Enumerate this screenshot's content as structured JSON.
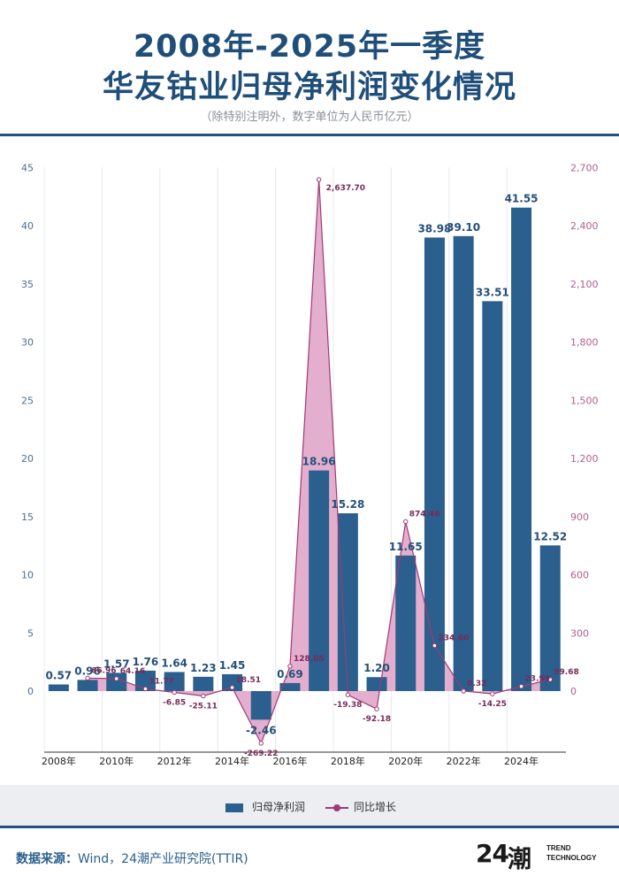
{
  "header": {
    "title_line1": "2008年-2025年一季度",
    "title_line2": "华友钴业归母净利润变化情况",
    "subtitle": "（除特别注明外，数字单位为人民币亿元）"
  },
  "legend": {
    "bar_label": "归母净利润",
    "line_label": "同比增长"
  },
  "source": {
    "label": "数据来源：",
    "text": "Wind，24潮产业研究院(TTIR)"
  },
  "logo": {
    "number": "24",
    "chinese": "潮",
    "english_line1": "TREND",
    "english_line2": "TECHNOLOGY"
  },
  "colors": {
    "bar": "#2a5f8e",
    "line": "#a03a74",
    "area": "#dfa0c6",
    "title": "#1f4e79"
  },
  "chart_data": {
    "type": "bar",
    "title": "",
    "categories": [
      "2008",
      "2009",
      "2010",
      "2011",
      "2012",
      "2013",
      "2014",
      "2015",
      "2016",
      "2017",
      "2018",
      "2019",
      "2020",
      "2021",
      "2022",
      "2023",
      "2024",
      "2025Q1"
    ],
    "x_tick_labels": [
      "2008年",
      "2010年",
      "2012年",
      "2014年",
      "2016年",
      "2018年",
      "2020年",
      "2022年",
      "2024年"
    ],
    "series": [
      {
        "name": "归母净利润",
        "type": "bar",
        "axis": "left",
        "values": [
          0.57,
          0.96,
          1.57,
          1.76,
          1.64,
          1.23,
          1.45,
          -2.46,
          0.69,
          18.96,
          15.28,
          1.2,
          11.65,
          38.98,
          39.1,
          33.51,
          41.55,
          12.52
        ],
        "labels": [
          "0.57",
          "0.96",
          "1.57",
          "1.76",
          "1.64",
          "1.23",
          "1.45",
          "-2.46",
          "0.69",
          "18.96",
          "15.28",
          "1.20",
          "11.65",
          "38.98",
          "39.10",
          "33.51",
          "41.55",
          "12.52"
        ]
      },
      {
        "name": "同比增长",
        "type": "area-line",
        "axis": "right",
        "values": [
          null,
          66.96,
          64.16,
          11.77,
          -6.85,
          -25.11,
          18.51,
          -269.22,
          128.05,
          2637.7,
          -19.38,
          -92.18,
          874.46,
          234.6,
          0.32,
          -14.25,
          23.99,
          59.68
        ],
        "labels": [
          "",
          "66.96",
          "64.16",
          "11.77",
          "-6.85",
          "-25.11",
          "18.51",
          "-269.22",
          "128.05",
          "2,637.70",
          "-19.38",
          "-92.18",
          "874.46",
          "234.60",
          "0.32",
          "-14.25",
          "23.99",
          "59.68"
        ]
      }
    ],
    "y_left": {
      "lim": [
        -5,
        45
      ],
      "ticks": [
        "45",
        "40",
        "35",
        "30",
        "25",
        "20",
        "15",
        "10",
        "5",
        "0"
      ]
    },
    "y_right": {
      "lim": [
        -450,
        2700
      ],
      "ticks": [
        "2,700",
        "2,400",
        "2,100",
        "1,800",
        "1,500",
        "1,200",
        "900",
        "600",
        "300",
        "0"
      ]
    },
    "grid": "vertical",
    "legend_position": "bottom"
  }
}
